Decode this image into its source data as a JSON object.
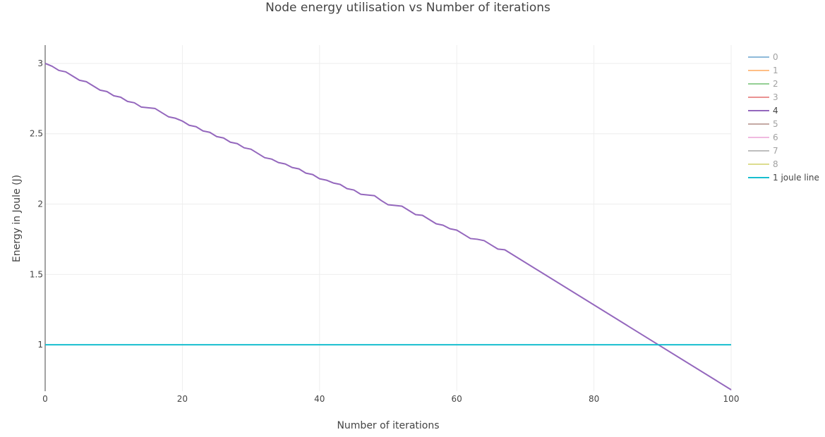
{
  "chart_data": {
    "type": "line",
    "title": "Node energy utilisation vs Number of iterations",
    "xlabel": "Number of iterations",
    "ylabel": "Energy in Joule (J)",
    "xlim": [
      0,
      100
    ],
    "ylim": [
      0.67,
      3.13
    ],
    "x_ticks": [
      0,
      20,
      40,
      60,
      80,
      100
    ],
    "y_ticks": [
      1,
      1.5,
      2,
      2.5,
      3
    ],
    "y_tick_labels": [
      "1",
      "1.5",
      "2",
      "2.5",
      "3"
    ],
    "grid": true,
    "legend_position": "right",
    "series": [
      {
        "name": "0",
        "color": "#1f77b4",
        "visible": false,
        "x": [],
        "y": []
      },
      {
        "name": "1",
        "color": "#ff7f0e",
        "visible": false,
        "x": [],
        "y": []
      },
      {
        "name": "2",
        "color": "#2ca02c",
        "visible": false,
        "x": [],
        "y": []
      },
      {
        "name": "3",
        "color": "#d62728",
        "visible": false,
        "x": [],
        "y": []
      },
      {
        "name": "4",
        "color": "#9467bd",
        "visible": true,
        "x": [
          0,
          1,
          2,
          3,
          4,
          5,
          6,
          7,
          8,
          9,
          10,
          11,
          12,
          13,
          14,
          15,
          16,
          17,
          18,
          19,
          20,
          21,
          22,
          23,
          24,
          25,
          26,
          27,
          28,
          29,
          30,
          31,
          32,
          33,
          34,
          35,
          36,
          37,
          38,
          39,
          40,
          41,
          42,
          43,
          44,
          45,
          46,
          47,
          48,
          49,
          50,
          51,
          52,
          53,
          54,
          55,
          56,
          57,
          58,
          59,
          60,
          61,
          62,
          63,
          64,
          65,
          66,
          67,
          100
        ],
        "y": [
          3.0,
          2.98,
          2.95,
          2.94,
          2.91,
          2.88,
          2.87,
          2.84,
          2.81,
          2.8,
          2.77,
          2.76,
          2.73,
          2.72,
          2.69,
          2.685,
          2.68,
          2.65,
          2.62,
          2.61,
          2.59,
          2.56,
          2.55,
          2.52,
          2.51,
          2.48,
          2.47,
          2.44,
          2.43,
          2.4,
          2.39,
          2.36,
          2.33,
          2.32,
          2.295,
          2.285,
          2.26,
          2.25,
          2.22,
          2.21,
          2.18,
          2.17,
          2.15,
          2.14,
          2.11,
          2.1,
          2.07,
          2.065,
          2.06,
          2.025,
          1.995,
          1.99,
          1.985,
          1.955,
          1.925,
          1.92,
          1.89,
          1.86,
          1.85,
          1.825,
          1.815,
          1.785,
          1.755,
          1.75,
          1.74,
          1.71,
          1.68,
          1.675,
          0.68
        ]
      },
      {
        "name": "5",
        "color": "#8c564b",
        "visible": false,
        "x": [],
        "y": []
      },
      {
        "name": "6",
        "color": "#e377c2",
        "visible": false,
        "x": [],
        "y": []
      },
      {
        "name": "7",
        "color": "#7f7f7f",
        "visible": false,
        "x": [],
        "y": []
      },
      {
        "name": "8",
        "color": "#bcbd22",
        "visible": false,
        "x": [],
        "y": []
      },
      {
        "name": "1 joule line",
        "color": "#17becf",
        "visible": true,
        "x": [
          0,
          100
        ],
        "y": [
          1,
          1
        ]
      }
    ]
  }
}
